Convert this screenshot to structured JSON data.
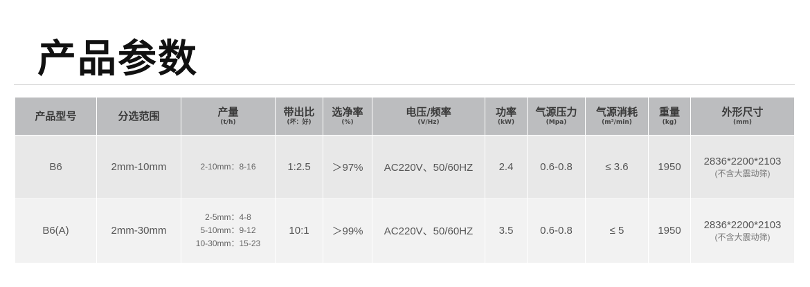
{
  "title": "产品参数",
  "headers": [
    {
      "label": "产品型号",
      "unit": ""
    },
    {
      "label": "分选范围",
      "unit": ""
    },
    {
      "label": "产量",
      "unit": "(t/h)"
    },
    {
      "label": "带出比",
      "unit": "(坏：好)"
    },
    {
      "label": "选净率",
      "unit": "(%)"
    },
    {
      "label": "电压/频率",
      "unit": "(V/Hz)"
    },
    {
      "label": "功率",
      "unit": "(kW)"
    },
    {
      "label": "气源压力",
      "unit": "(Mpa)"
    },
    {
      "label": "气源消耗",
      "unit": "(m³/min)"
    },
    {
      "label": "重量",
      "unit": "(kg)"
    },
    {
      "label": "外形尺寸",
      "unit": "(mm)"
    }
  ],
  "rows": [
    {
      "model": "B6",
      "range": "2mm-10mm",
      "output": [
        "2-10mm：8-16"
      ],
      "ratio": "1:2.5",
      "purity": "＞97%",
      "voltage": "AC220V、50/60HZ",
      "power": "2.4",
      "air_pressure": "0.6-0.8",
      "air_consumption": "≤ 3.6",
      "weight": "1950",
      "dimensions": "2836*2200*2103",
      "dimensions_note": "(不含大震动筛)"
    },
    {
      "model": "B6(A)",
      "range": "2mm-30mm",
      "output": [
        "2-5mm：4-8",
        "5-10mm：9-12",
        "10-30mm：15-23"
      ],
      "ratio": "10:1",
      "purity": "＞99%",
      "voltage": "AC220V、50/60HZ",
      "power": "3.5",
      "air_pressure": "0.6-0.8",
      "air_consumption": "≤ 5",
      "weight": "1950",
      "dimensions": "2836*2200*2103",
      "dimensions_note": "(不含大震动筛)"
    }
  ]
}
